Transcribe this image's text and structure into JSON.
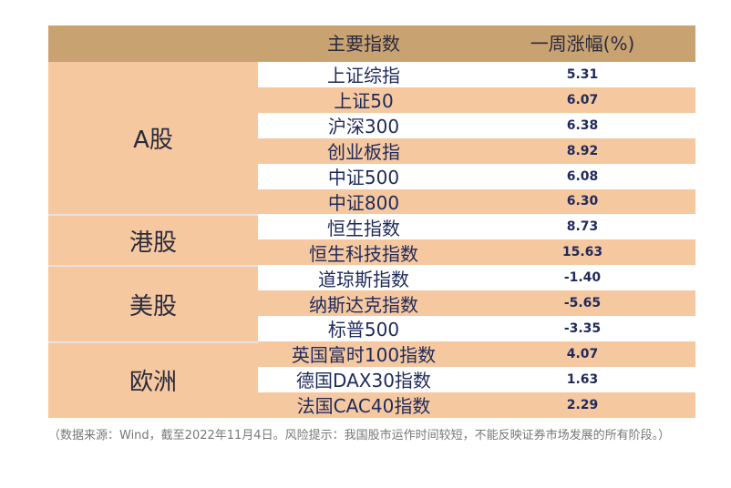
{
  "header": {
    "index_label": "主要指数",
    "change_label": "一周涨幅(%)"
  },
  "regions": [
    {
      "name": "A股",
      "rows": [
        {
          "index": "上证综指",
          "change": "5.31"
        },
        {
          "index": "上证50",
          "change": "6.07"
        },
        {
          "index": "沪深300",
          "change": "6.38"
        },
        {
          "index": "创业板指",
          "change": "8.92"
        },
        {
          "index": "中证500",
          "change": "6.08"
        },
        {
          "index": "中证800",
          "change": "6.30"
        }
      ]
    },
    {
      "name": "港股",
      "rows": [
        {
          "index": "恒生指数",
          "change": "8.73"
        },
        {
          "index": "恒生科技指数",
          "change": "15.63"
        }
      ]
    },
    {
      "name": "美股",
      "rows": [
        {
          "index": "道琼斯指数",
          "change": "-1.40"
        },
        {
          "index": "纳斯达克指数",
          "change": "-5.65"
        },
        {
          "index": "标普500",
          "change": "-3.35"
        }
      ]
    },
    {
      "name": "欧洲",
      "rows": [
        {
          "index": "英国富时100指数",
          "change": "4.07"
        },
        {
          "index": "德国DAX30指数",
          "change": "1.63"
        },
        {
          "index": "法国CAC40指数",
          "change": "2.29"
        }
      ]
    }
  ],
  "note": "（数据来源：Wind，截至2022年11月4日。风险提示：我国股市运作时间较短，不能反映证券市场发展的所有阶段。）"
}
